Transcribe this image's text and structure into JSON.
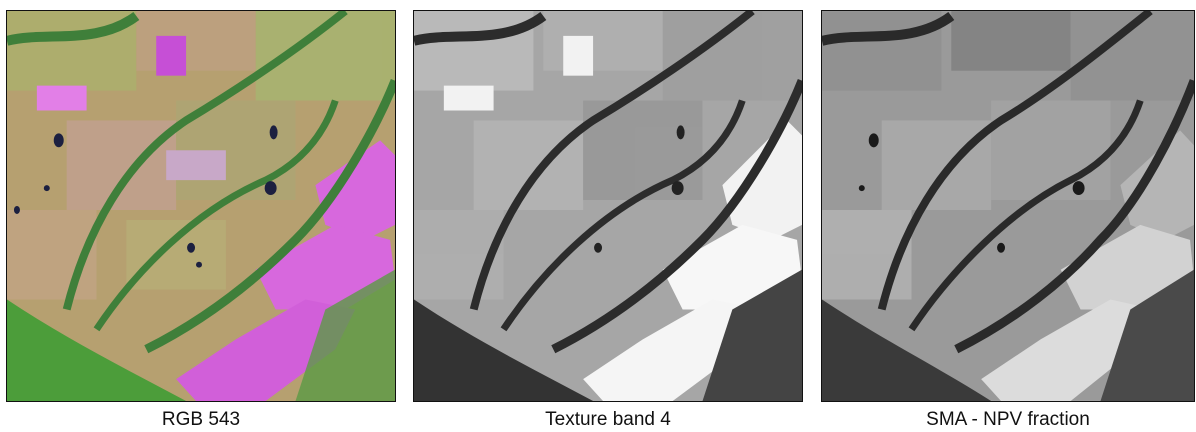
{
  "panels": [
    {
      "caption": "RGB 543"
    },
    {
      "caption": "Texture band 4"
    },
    {
      "caption": "SMA - NPV fraction"
    }
  ],
  "colors": {
    "rgb_field_base": "#b9a36f",
    "rgb_vegetation": "#3f7f3a",
    "rgb_bare_soil": "#d768dd",
    "rgb_forest": "#4c9d3a",
    "rgb_water": "#1c2040",
    "texture_base": "#a8a8a8",
    "texture_bright": "#f2f2f2",
    "texture_dark": "#2c2c2c",
    "npv_base": "#9a9a9a",
    "npv_bright": "#dcdcdc",
    "npv_dark": "#2a2a2a"
  }
}
